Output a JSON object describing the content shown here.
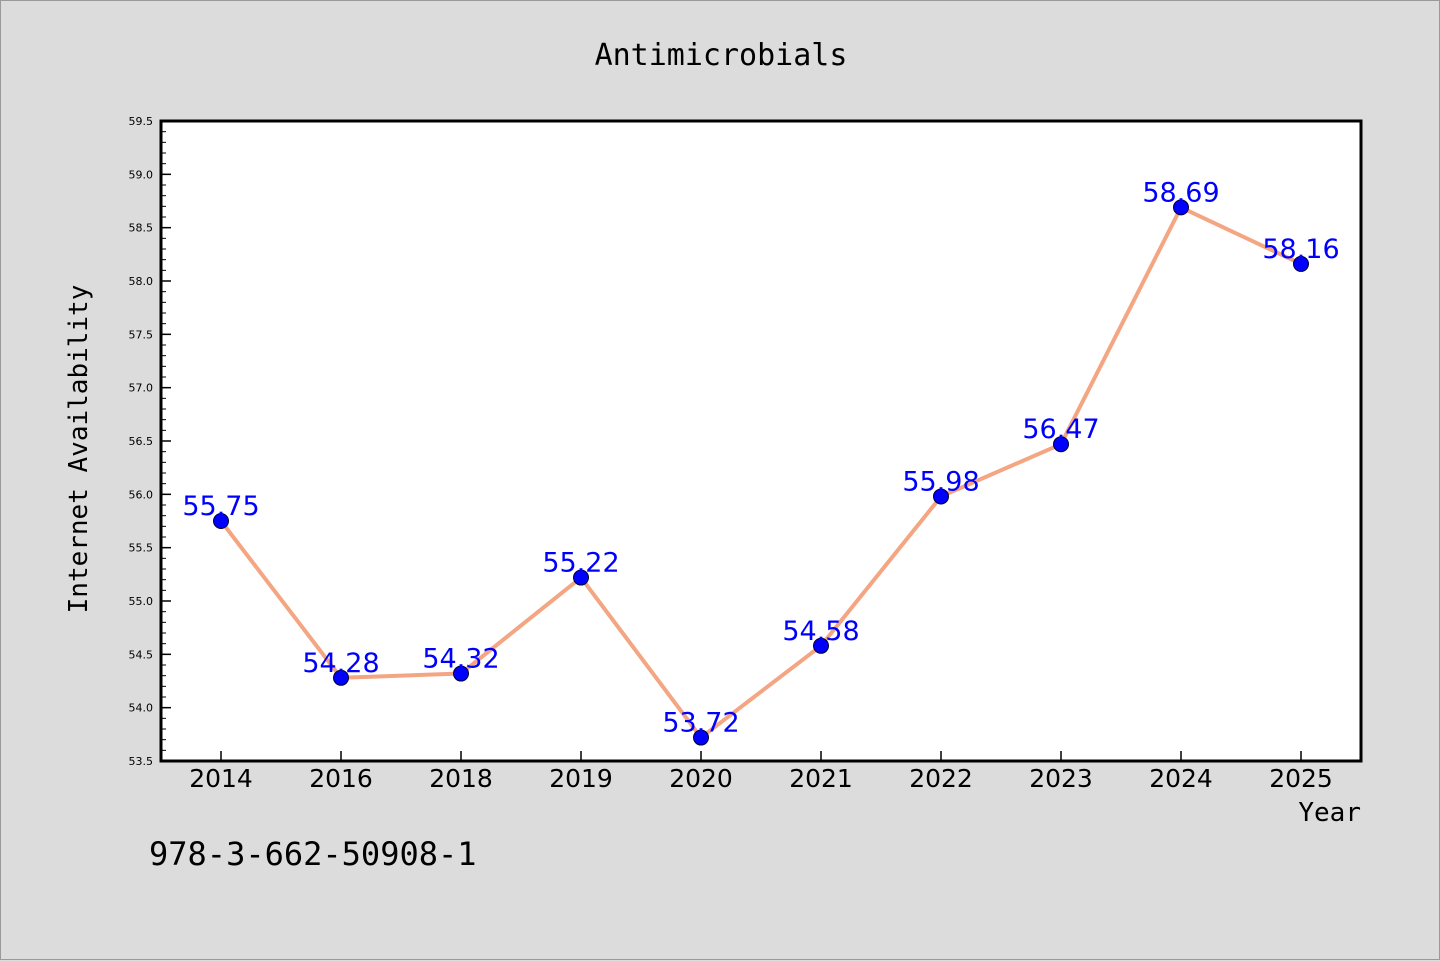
{
  "chart_data": {
    "type": "line",
    "title": "Antimicrobials",
    "xlabel": "Year",
    "ylabel": "Internet Availability",
    "categories": [
      "2014",
      "2016",
      "2018",
      "2019",
      "2020",
      "2021",
      "2022",
      "2023",
      "2024",
      "2025"
    ],
    "series": [
      {
        "values": [
          55.75,
          54.28,
          54.32,
          55.22,
          53.72,
          54.58,
          55.98,
          56.47,
          58.69,
          58.16
        ],
        "data_labels": [
          "55.75",
          "54.28",
          "54.32",
          "55.22",
          "53.72",
          "54.58",
          "55.98",
          "56.47",
          "58.69",
          "58.16"
        ],
        "line_color": "#f4a582",
        "marker_color": "#0000ff"
      }
    ],
    "ylim": [
      53.5,
      59.5
    ],
    "yticks": [
      "53.5",
      "54.0",
      "54.5",
      "55.0",
      "55.5",
      "56.0",
      "56.5",
      "57.0",
      "57.5",
      "58.0",
      "58.5",
      "59.0",
      "59.5"
    ],
    "grid": false,
    "legend": "none"
  },
  "annotation": {
    "isbn": "978-3-662-50908-1"
  },
  "colors": {
    "background": "#dcdcdc",
    "plot_background": "#ffffff",
    "line": "#f4a582",
    "marker": "#0000ff",
    "data_label": "#0000ff"
  }
}
